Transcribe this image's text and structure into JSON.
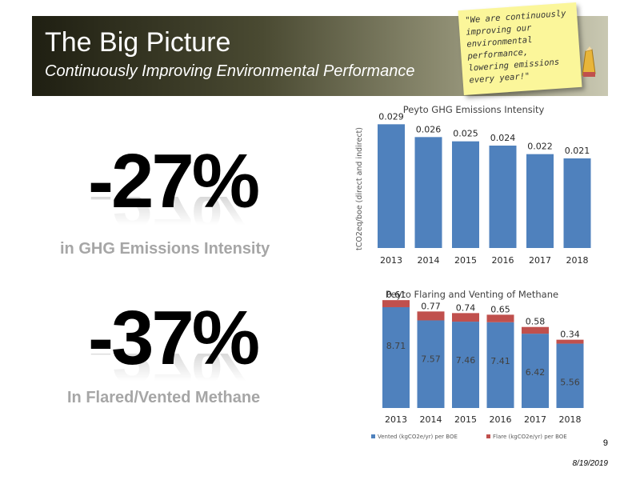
{
  "banner": {
    "title": "The Big Picture",
    "subtitle": "Continuously Improving Environmental Performance",
    "note": "\"We are continuously improving our environmental performance, lowering emissions every year!\""
  },
  "stats": [
    {
      "value": "-27%",
      "caption": "in GHG Emissions Intensity"
    },
    {
      "value": "-37%",
      "caption": "In Flared/Vented Methane"
    }
  ],
  "footer": {
    "page": "9",
    "date": "8/19/2019"
  },
  "colors": {
    "bar": "#4f81bd",
    "flare": "#c0504d",
    "caption": "#a6a6a6"
  },
  "chart_data": [
    {
      "type": "bar",
      "title": "Peyto GHG Emissions Intensity",
      "ylabel": "tCO2eq/boe (direct and indirect)",
      "categories": [
        "2013",
        "2014",
        "2015",
        "2016",
        "2017",
        "2018"
      ],
      "values": [
        0.029,
        0.026,
        0.025,
        0.024,
        0.022,
        0.021
      ],
      "data_labels": [
        "0.029",
        "0.026",
        "0.025",
        "0.024",
        "0.022",
        "0.021"
      ],
      "ylim": [
        0,
        0.03
      ],
      "grid": false
    },
    {
      "type": "bar",
      "stacked": true,
      "title": "Peyto Flaring and Venting of Methane",
      "categories": [
        "2013",
        "2014",
        "2015",
        "2016",
        "2017",
        "2018"
      ],
      "series": [
        {
          "name": "Vented (kgCO2e/yr) per BOE",
          "values": [
            8.71,
            7.57,
            7.46,
            7.41,
            6.42,
            5.56
          ],
          "labels": [
            "8.71",
            "7.57",
            "7.46",
            "7.41",
            "6.42",
            "5.56"
          ]
        },
        {
          "name": "Flare (kgCO2e/yr) per BOE",
          "values": [
            0.61,
            0.77,
            0.74,
            0.65,
            0.58,
            0.34
          ],
          "labels": [
            "0.61",
            "0.77",
            "0.74",
            "0.65",
            "0.58",
            "0.34"
          ]
        }
      ],
      "ylim": [
        0,
        9.4
      ],
      "legend": "bottom",
      "grid": false
    }
  ]
}
